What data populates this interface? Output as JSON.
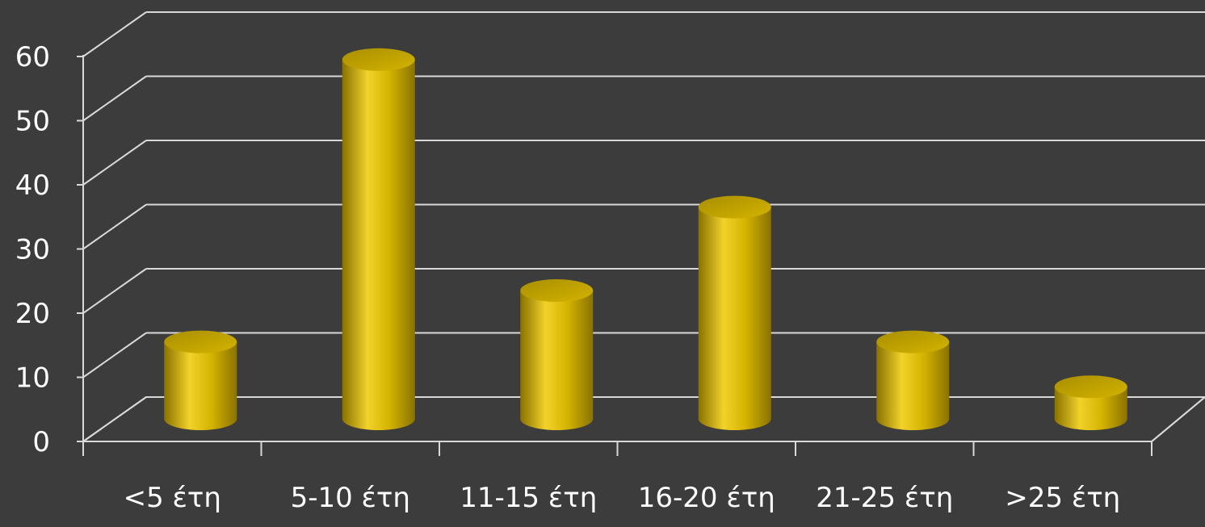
{
  "chart_data": {
    "type": "bar",
    "title": "",
    "xlabel": "",
    "ylabel": "",
    "categories": [
      "<5 έτη",
      "5-10 έτη",
      "11-15 έτη",
      "16-20 έτη",
      "21-25 έτη",
      ">25 έτη"
    ],
    "values": [
      12,
      56,
      20,
      33,
      12,
      5
    ],
    "ylim": [
      0,
      70
    ],
    "yticks": [
      0,
      10,
      20,
      30,
      40,
      50,
      60
    ],
    "grid": true,
    "legend": false,
    "style": "3d-cylinder",
    "colors": {
      "background": "#3c3c3c",
      "bar": "#d4b300",
      "bar_light": "#f2d22a",
      "bar_dark": "#8a7200",
      "grid": "#d9d9d9",
      "text": "#ffffff"
    }
  }
}
